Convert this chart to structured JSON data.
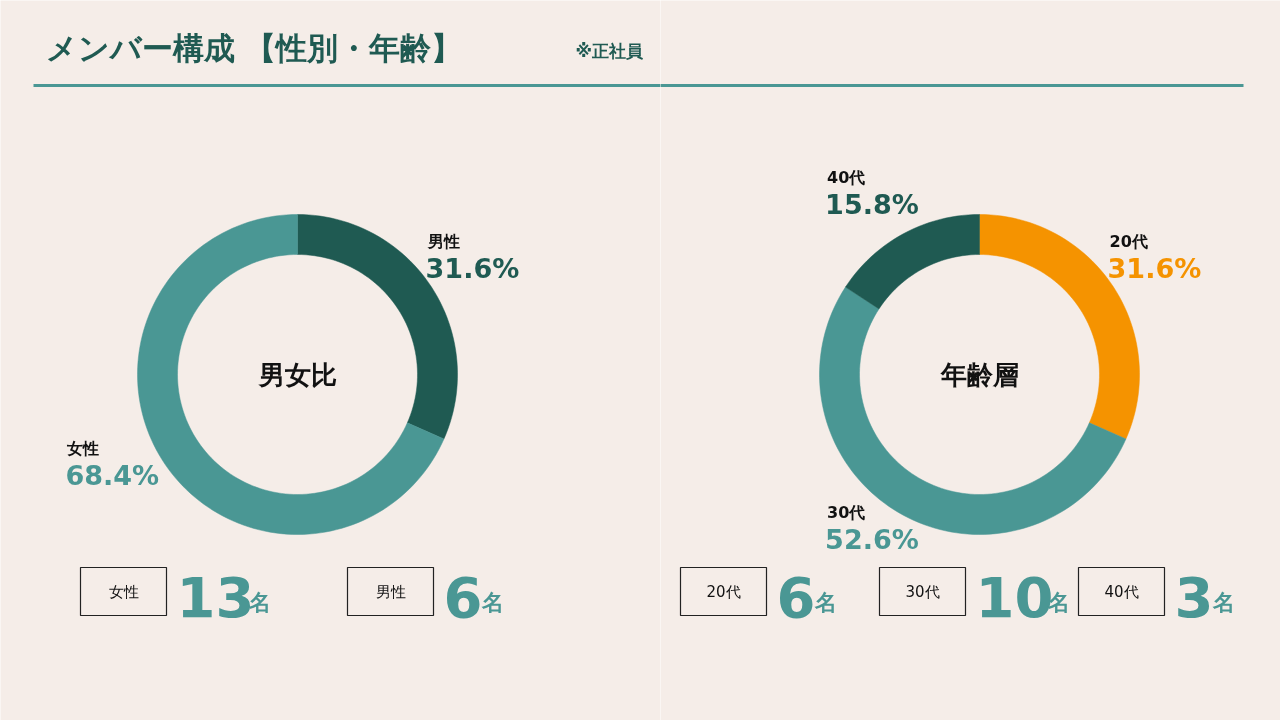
{
  "chart_data": [
    {
      "type": "donut",
      "title": "メンバー構成 【性別・年齢】",
      "subtitle": "※正社員",
      "categories": [
        "男性",
        "女性"
      ],
      "values": [
        31.6,
        68.4
      ],
      "colors": [
        "#1f5a52",
        "#4a9794"
      ],
      "value_labels": [
        "31.6%",
        "68.4%"
      ],
      "annotations": [
        "男女比",
        "女性",
        "13名",
        "男性",
        "6名"
      ]
    },
    {
      "type": "donut",
      "categories": [
        "20代",
        "30代",
        "40代"
      ],
      "values": [
        31.6,
        52.6,
        15.8
      ],
      "colors": [
        "#f59300",
        "#4a9794",
        "#1f5a52"
      ],
      "value_labels": [
        "31.6%",
        "52.6%",
        "15.8%"
      ],
      "annotations": [
        "年齢層",
        "20代",
        "6名",
        "30代",
        "10名",
        "40代",
        "3名"
      ]
    }
  ]
}
